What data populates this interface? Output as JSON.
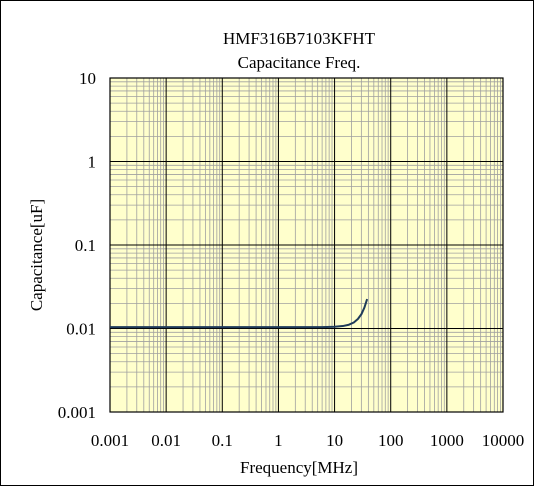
{
  "chart_data": {
    "type": "line",
    "title": "HMF316B7103KFHT",
    "subtitle": "Capacitance Freq.",
    "xlabel": "Frequency[MHz]",
    "ylabel": "Capacitance[uF]",
    "x_scale": "log",
    "y_scale": "log",
    "xlim": [
      0.001,
      10000
    ],
    "ylim": [
      0.001,
      10
    ],
    "x_ticks": [
      "0.001",
      "0.01",
      "0.1",
      "1",
      "10",
      "100",
      "1000",
      "10000"
    ],
    "y_ticks": [
      "10",
      "1",
      "0.1",
      "0.01",
      "0.001"
    ],
    "grid": true,
    "plot_background": "#ffffcc",
    "grid_color": "#a0a0a0",
    "series": [
      {
        "color": "#1f3b5a",
        "x": [
          0.001,
          0.003,
          0.01,
          0.03,
          0.1,
          0.3,
          1,
          3,
          6,
          10,
          14,
          18,
          22,
          26,
          30,
          34,
          38
        ],
        "y": [
          0.0104,
          0.0104,
          0.0104,
          0.0104,
          0.0104,
          0.0104,
          0.0104,
          0.0104,
          0.0104,
          0.0105,
          0.0107,
          0.0111,
          0.0118,
          0.013,
          0.0148,
          0.0178,
          0.0225
        ]
      }
    ]
  }
}
